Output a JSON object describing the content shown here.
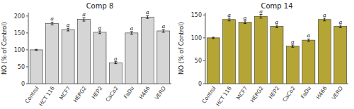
{
  "chart_data": [
    {
      "type": "bar",
      "title": "Comp 8",
      "categories": [
        "Control",
        "HCT 116",
        "MCF7",
        "HEPG2",
        "HEP2",
        "CaCo2",
        "FaDu",
        "H466",
        "VERO"
      ],
      "values": [
        100,
        178,
        160,
        190,
        152,
        62,
        150,
        197,
        156
      ],
      "errors": [
        1.5,
        4,
        4,
        5,
        4,
        3,
        4,
        4,
        4
      ],
      "annotations": [
        null,
        "a",
        "a",
        "a",
        "a",
        "a",
        "a",
        "a",
        "a"
      ],
      "color": "#d5d5d5",
      "ylabel": "NO (% of Control)",
      "ylim": [
        0,
        210
      ],
      "yticks": [
        0,
        50,
        100,
        150,
        200
      ]
    },
    {
      "type": "bar",
      "title": "Comp 14",
      "categories": [
        "Control",
        "HCT 116",
        "MCF7",
        "HEPG2",
        "HEP2",
        "CaCo2",
        "FaDu",
        "H466",
        "VERO"
      ],
      "values": [
        100,
        140,
        134,
        147,
        125,
        82,
        95,
        140,
        125
      ],
      "errors": [
        1.5,
        3,
        3,
        4,
        3,
        2.5,
        2.5,
        3,
        3
      ],
      "annotations": [
        null,
        "a",
        "a",
        "a",
        "a",
        "a",
        "a",
        "a",
        "a"
      ],
      "color": "#b5a535",
      "ylabel": "NO (% of Control)",
      "ylim": [
        0,
        155
      ],
      "yticks": [
        0,
        50,
        100,
        150
      ]
    }
  ]
}
